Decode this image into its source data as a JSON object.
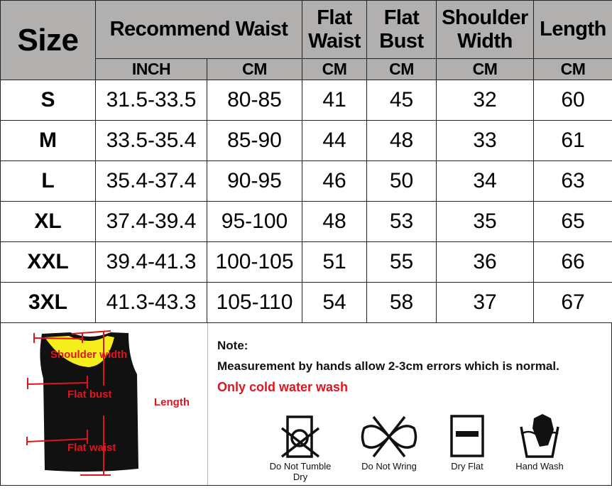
{
  "table": {
    "header": {
      "size": "Size",
      "recommend_waist": "Recommend Waist",
      "flat_waist": "Flat Waist",
      "flat_bust": "Flat Bust",
      "shoulder_width": "Shoulder Width",
      "length": "Length"
    },
    "units": [
      "INCH",
      "CM",
      "CM",
      "CM",
      "CM",
      "CM"
    ],
    "rows": [
      [
        "S",
        "31.5-33.5",
        "80-85",
        "41",
        "45",
        "32",
        "60"
      ],
      [
        "M",
        "33.5-35.4",
        "85-90",
        "44",
        "48",
        "33",
        "61"
      ],
      [
        "L",
        "35.4-37.4",
        "90-95",
        "46",
        "50",
        "34",
        "63"
      ],
      [
        "XL",
        "37.4-39.4",
        "95-100",
        "48",
        "53",
        "35",
        "65"
      ],
      [
        "XXL",
        "39.4-41.3",
        "100-105",
        "51",
        "55",
        "36",
        "66"
      ],
      [
        "3XL",
        "41.3-43.3",
        "105-110",
        "54",
        "58",
        "37",
        "67"
      ]
    ]
  },
  "diagram": {
    "shoulder": "Shoulder width",
    "bust": "Flat bust",
    "waist": "Flat waist",
    "length": "Length"
  },
  "note": {
    "title": "Note:",
    "text": "Measurement by hands allow 2-3cm errors which is normal.",
    "wash": "Only cold water wash"
  },
  "care": [
    {
      "label": "Do Not Tumble Dry",
      "icon": "no-tumble-dry-icon"
    },
    {
      "label": "Do Not Wring",
      "icon": "no-wring-icon"
    },
    {
      "label": "Dry Flat",
      "icon": "dry-flat-icon"
    },
    {
      "label": "Hand Wash",
      "icon": "hand-wash-icon"
    }
  ],
  "colors": {
    "header_bg": "#b2afaf",
    "accent_red": "#e0141e",
    "vest_lining": "#f5ee1c"
  }
}
